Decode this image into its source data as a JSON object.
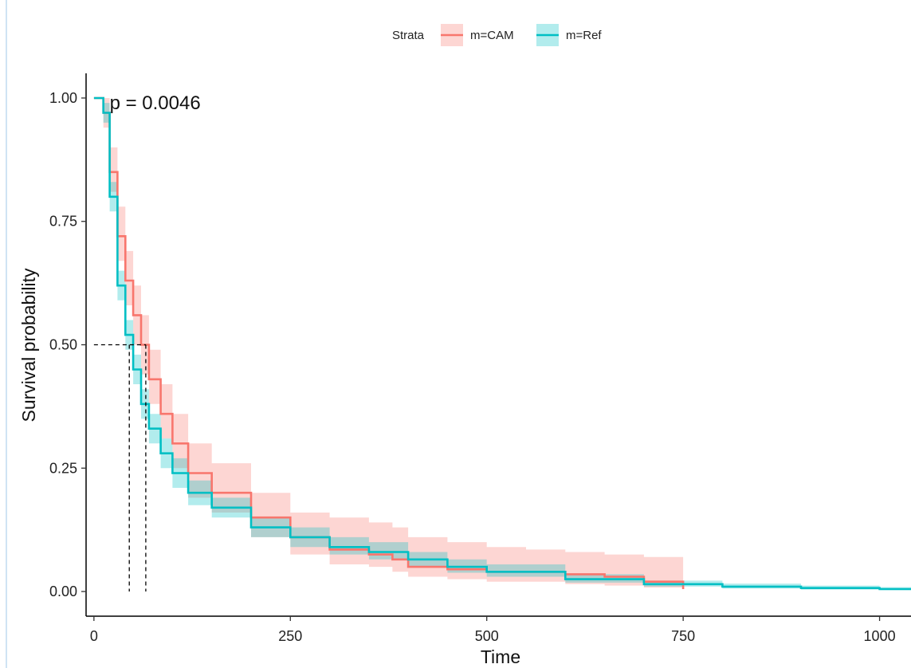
{
  "chart_data": {
    "type": "line",
    "subtype": "kaplan-meier step curves with confidence bands",
    "xlabel": "Time",
    "ylabel": "Survival probability",
    "xlim": [
      -10,
      1040
    ],
    "ylim": [
      -0.05,
      1.05
    ],
    "x_ticks": [
      0,
      250,
      500,
      750,
      1000
    ],
    "y_ticks": [
      0,
      0.25,
      0.5,
      0.75,
      1.0
    ],
    "x_tick_labels": [
      "0",
      "250",
      "500",
      "750",
      "1000"
    ],
    "y_tick_labels": [
      "0.00",
      "0.25",
      "0.50",
      "0.75",
      "1.00"
    ],
    "grid": false,
    "legend": {
      "title": "Strata",
      "placement": "top"
    },
    "annotation": {
      "text": "p = 0.0046",
      "x": 20,
      "y": 0.99
    },
    "median_lines": [
      {
        "series": "m=Ref",
        "x": 45,
        "y": 0.5
      },
      {
        "series": "m=CAM",
        "x": 66,
        "y": 0.5
      }
    ],
    "series": [
      {
        "name": "m=CAM",
        "color": "#F8766D",
        "x": [
          0,
          5,
          12,
          20,
          30,
          40,
          50,
          60,
          70,
          85,
          100,
          120,
          150,
          200,
          250,
          300,
          350,
          380,
          400,
          450,
          500,
          550,
          600,
          650,
          700,
          750
        ],
        "y": [
          1.0,
          1.0,
          0.97,
          0.85,
          0.72,
          0.63,
          0.56,
          0.5,
          0.43,
          0.36,
          0.3,
          0.24,
          0.2,
          0.15,
          0.11,
          0.085,
          0.075,
          0.065,
          0.05,
          0.045,
          0.04,
          0.04,
          0.035,
          0.03,
          0.02,
          0.005
        ],
        "lower": [
          1.0,
          1.0,
          0.94,
          0.81,
          0.67,
          0.58,
          0.5,
          0.44,
          0.38,
          0.31,
          0.25,
          0.19,
          0.16,
          0.11,
          0.075,
          0.055,
          0.05,
          0.04,
          0.03,
          0.025,
          0.02,
          0.02,
          0.015,
          0.012,
          0.008,
          0.002
        ],
        "upper": [
          1.0,
          1.0,
          1.0,
          0.9,
          0.78,
          0.69,
          0.62,
          0.56,
          0.49,
          0.42,
          0.36,
          0.3,
          0.26,
          0.2,
          0.16,
          0.15,
          0.14,
          0.13,
          0.11,
          0.1,
          0.09,
          0.085,
          0.08,
          0.075,
          0.07,
          0.06
        ]
      },
      {
        "name": "m=Ref",
        "color": "#00BFC4",
        "x": [
          0,
          5,
          12,
          20,
          30,
          40,
          50,
          60,
          70,
          85,
          100,
          120,
          150,
          200,
          250,
          300,
          350,
          400,
          450,
          500,
          600,
          700,
          800,
          900,
          1000,
          1040
        ],
        "y": [
          1.0,
          1.0,
          0.97,
          0.8,
          0.62,
          0.52,
          0.45,
          0.38,
          0.33,
          0.28,
          0.24,
          0.2,
          0.17,
          0.13,
          0.11,
          0.09,
          0.08,
          0.065,
          0.05,
          0.04,
          0.025,
          0.015,
          0.01,
          0.007,
          0.005,
          0.005
        ],
        "lower": [
          1.0,
          1.0,
          0.95,
          0.77,
          0.59,
          0.49,
          0.42,
          0.35,
          0.3,
          0.25,
          0.21,
          0.175,
          0.15,
          0.11,
          0.09,
          0.075,
          0.065,
          0.05,
          0.038,
          0.03,
          0.018,
          0.01,
          0.006,
          0.004,
          0.003,
          0.003
        ],
        "upper": [
          1.0,
          1.0,
          0.99,
          0.83,
          0.65,
          0.55,
          0.48,
          0.41,
          0.36,
          0.31,
          0.27,
          0.225,
          0.19,
          0.15,
          0.13,
          0.11,
          0.1,
          0.08,
          0.065,
          0.055,
          0.035,
          0.022,
          0.016,
          0.012,
          0.009,
          0.009
        ]
      }
    ]
  }
}
